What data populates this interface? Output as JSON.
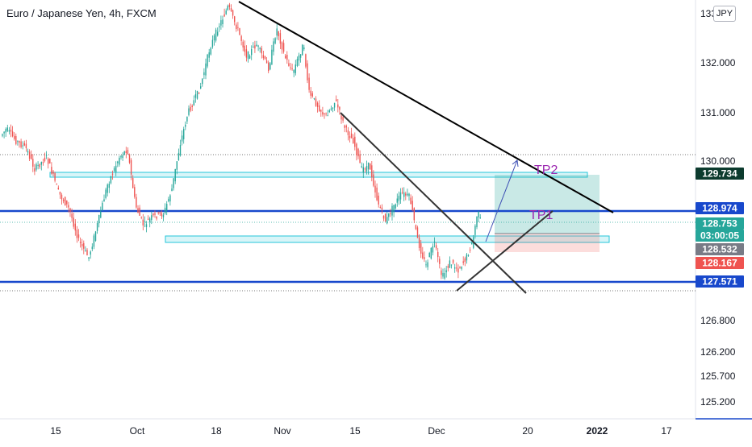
{
  "title": "Euro / Japanese Yen, 4h, FXCM",
  "currency": "JPY",
  "chart_data": {
    "type": "candlestick",
    "symbol": "EURJPY",
    "timeframe": "4h",
    "y_range": [
      124.9,
      133.5
    ],
    "y_ticks": [
      "133.000",
      "132.000",
      "131.000",
      "130.000",
      "126.800",
      "126.200",
      "125.700",
      "125.200"
    ],
    "x_ticks": [
      "15",
      "Oct",
      "18",
      "Nov",
      "15",
      "Dec",
      "20",
      "2022",
      "17"
    ],
    "price_labels": [
      {
        "text": "129.734",
        "value": 129.734,
        "bg": "#0c3b2e"
      },
      {
        "text": "128.974",
        "value": 128.974,
        "bg": "#1848cc"
      },
      {
        "text": "128.753",
        "value": 128.753,
        "bg": "#26a69a"
      },
      {
        "text": "03:00:05",
        "value": 128.753,
        "bg": "#26a69a"
      },
      {
        "text": "128.532",
        "value": 128.532,
        "bg": "#787b86"
      },
      {
        "text": "128.167",
        "value": 128.167,
        "bg": "#ef5350"
      },
      {
        "text": "127.571",
        "value": 127.571,
        "bg": "#1848cc"
      }
    ],
    "annotations": [
      "TP2",
      "TP1"
    ],
    "horizontal_levels": [
      128.974,
      127.571
    ],
    "colors": {
      "up": "#26a69a",
      "down": "#ef5350",
      "level": "#1848cc",
      "accent": "#9c27b0"
    }
  }
}
